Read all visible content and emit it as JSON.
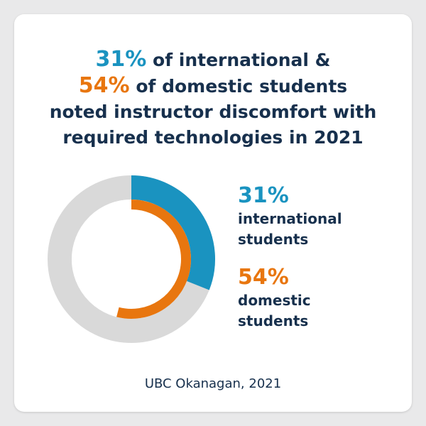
{
  "headline": {
    "intl_pct": "31%",
    "intl_rest": " of international &",
    "dom_pct": "54%",
    "dom_rest": " of domestic students",
    "line3": "noted instructor discomfort with",
    "line4": "required technologies in 2021"
  },
  "legend": {
    "intl_pct": "31%",
    "intl_label": "international students",
    "dom_pct": "54%",
    "dom_label": "domestic students"
  },
  "source": "UBC Okanagan, 2021",
  "colors": {
    "international": "#1a93c0",
    "domestic": "#e8760f",
    "track": "#d9d9d9",
    "text": "#17304d"
  },
  "chart_data": {
    "type": "donut",
    "title": "",
    "series": [
      {
        "name": "international students",
        "value": 31,
        "total": 100,
        "ring": "outer"
      },
      {
        "name": "domestic students",
        "value": 54,
        "total": 100,
        "ring": "inner"
      }
    ]
  }
}
